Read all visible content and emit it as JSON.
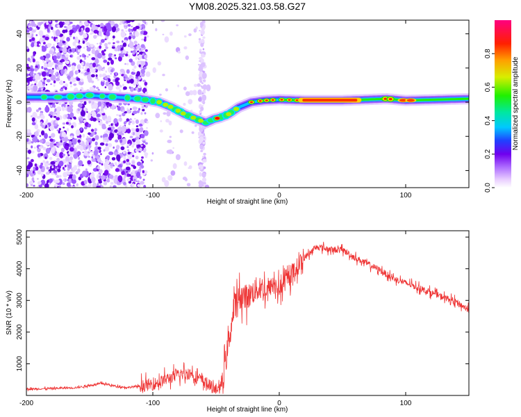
{
  "title": "YM08.2025.321.03.58.G27",
  "chart_data": [
    {
      "type": "heatmap",
      "name": "spectrogram",
      "xlabel": "Height of straight line (km)",
      "ylabel": "Frequency (Hz)",
      "xlim": [
        -200,
        150
      ],
      "ylim": [
        -50,
        48
      ],
      "xticks": [
        -200,
        -100,
        0,
        100
      ],
      "xtick_labels": [
        "-200",
        "-100",
        "0",
        "100"
      ],
      "yticks": [
        -40,
        -20,
        0,
        20,
        40
      ],
      "ytick_labels": [
        "-40",
        "-20",
        "0",
        "20",
        "40"
      ],
      "ridge": {
        "x": [
          -200,
          -170,
          -150,
          -130,
          -110,
          -95,
          -85,
          -75,
          -65,
          -58,
          -52,
          -47,
          -40,
          -32,
          -22,
          -12,
          0,
          20,
          50,
          85,
          100,
          150
        ],
        "y": [
          3,
          3,
          4,
          3,
          2,
          0,
          -3,
          -7,
          -10,
          -12,
          -10,
          -9,
          -7,
          -3,
          0,
          1,
          1.5,
          1,
          1,
          2,
          1,
          2
        ]
      },
      "colorbar": {
        "label": "Normalized spectral amplitude",
        "range": [
          0,
          1
        ],
        "ticks": [
          0,
          0.2,
          0.4,
          0.6,
          0.8
        ],
        "tick_labels": [
          "0.0",
          "0.2",
          "0.4",
          "0.6",
          "0.8"
        ]
      }
    },
    {
      "type": "line",
      "name": "snr",
      "xlabel": "Height of straight line (km)",
      "ylabel": "SNR (10 * v/v)",
      "xlim": [
        -200,
        150
      ],
      "ylim": [
        0,
        5200
      ],
      "xticks": [
        -200,
        -100,
        0,
        100
      ],
      "xtick_labels": [
        "-200",
        "-100",
        "0",
        "100"
      ],
      "yticks": [
        1000,
        2000,
        3000,
        4000,
        5000
      ],
      "ytick_labels": [
        "1000",
        "2000",
        "3000",
        "4000",
        "5000"
      ],
      "series": [
        {
          "name": "SNR",
          "color": "#ee3333",
          "x": [
            -200,
            -180,
            -160,
            -140,
            -130,
            -120,
            -110,
            -100,
            -90,
            -80,
            -70,
            -60,
            -55,
            -50,
            -45,
            -40,
            -35,
            -30,
            -25,
            -20,
            -15,
            -10,
            -5,
            0,
            10,
            20,
            30,
            40,
            50,
            60,
            70,
            80,
            90,
            100,
            110,
            120,
            130,
            140,
            150
          ],
          "y": [
            200,
            220,
            250,
            380,
            300,
            250,
            300,
            350,
            500,
            650,
            700,
            450,
            300,
            200,
            350,
            1700,
            2900,
            3150,
            3100,
            3300,
            3400,
            3300,
            3500,
            3350,
            3850,
            4350,
            4700,
            4600,
            4600,
            4350,
            4150,
            3950,
            3700,
            3550,
            3400,
            3250,
            3100,
            2950,
            2700
          ]
        }
      ]
    }
  ]
}
